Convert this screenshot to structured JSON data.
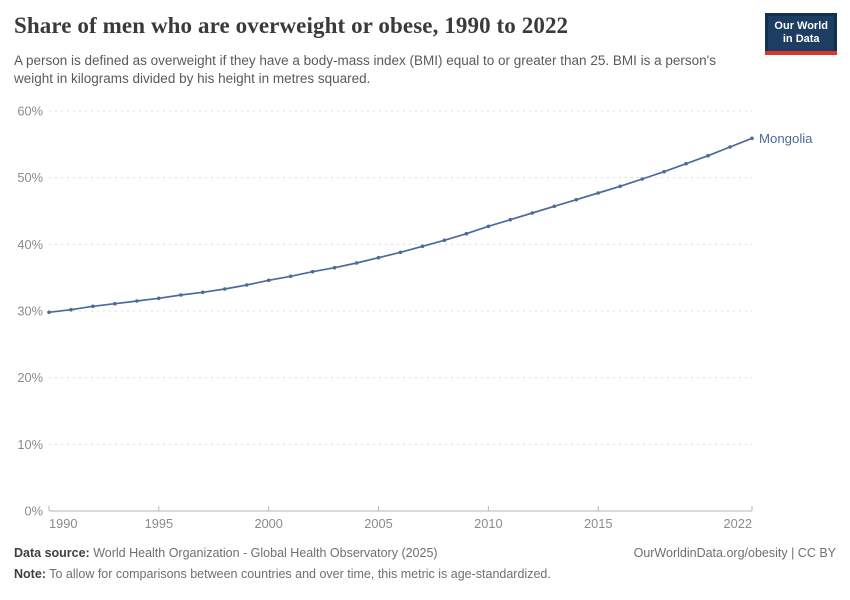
{
  "header": {
    "title": "Share of men who are overweight or obese, 1990 to 2022",
    "subtitle": "A person is defined as overweight if they have a body-mass index (BMI) equal to or greater than 25. BMI is a person's weight in kilograms divided by his height in metres squared.",
    "logo": {
      "line1": "Our World",
      "line2": "in Data",
      "bg_color": "#1d3d63",
      "accent_color": "#d7382b"
    }
  },
  "chart_data": {
    "type": "line",
    "title": "Share of men who are overweight or obese, 1990 to 2022",
    "xlabel": "",
    "ylabel": "",
    "x": [
      1990,
      1991,
      1992,
      1993,
      1994,
      1995,
      1996,
      1997,
      1998,
      1999,
      2000,
      2001,
      2002,
      2003,
      2004,
      2005,
      2006,
      2007,
      2008,
      2009,
      2010,
      2011,
      2012,
      2013,
      2014,
      2015,
      2016,
      2017,
      2018,
      2019,
      2020,
      2021,
      2022
    ],
    "series": [
      {
        "name": "Mongolia",
        "color": "#4c6a9c",
        "values": [
          29.8,
          30.2,
          30.7,
          31.1,
          31.5,
          31.9,
          32.4,
          32.8,
          33.3,
          33.9,
          34.6,
          35.2,
          35.9,
          36.5,
          37.2,
          38.0,
          38.8,
          39.7,
          40.6,
          41.6,
          42.7,
          43.7,
          44.7,
          45.7,
          46.7,
          47.7,
          48.7,
          49.8,
          50.9,
          52.1,
          53.3,
          54.6,
          55.9
        ]
      }
    ],
    "xlim": [
      1990,
      2022
    ],
    "ylim": [
      0,
      60
    ],
    "xticks": [
      1990,
      1995,
      2000,
      2005,
      2010,
      2015,
      2022
    ],
    "yticks": [
      0,
      10,
      20,
      30,
      40,
      50,
      60
    ],
    "ytick_suffix": "%",
    "grid": "horizontal-dashed",
    "legend_position": "end-of-line-label",
    "axis_text_color": "#8b8b8b",
    "grid_color": "#dcdcdc",
    "axis_line_color": "#b5b5b5"
  },
  "footer": {
    "datasource_label": "Data source:",
    "datasource_value": " World Health Organization - Global Health Observatory (2025)",
    "note_label": "Note:",
    "note_value": " To allow for comparisons between countries and over time, this metric is age-standardized.",
    "url": "OurWorldinData.org/obesity | CC BY"
  }
}
